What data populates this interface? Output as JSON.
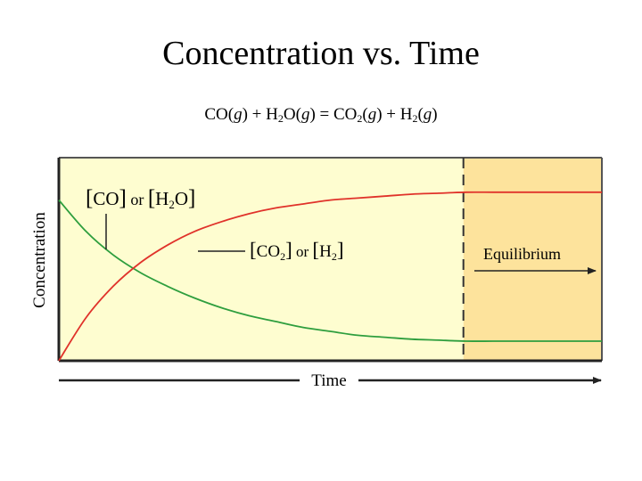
{
  "slide": {
    "title": "Concentration vs. Time",
    "equation": {
      "co": "CO(",
      "g1": "g",
      "p1": ") + H",
      "s1": "2",
      "p2": "O(",
      "g2": "g",
      "p3": ") = CO",
      "s2": "2",
      "p4": "(",
      "g3": "g",
      "p5": ") + H",
      "s3": "2",
      "p6": "(",
      "g4": "g",
      "p7": ")"
    }
  },
  "chart_data": {
    "type": "line",
    "title": "",
    "xlabel": "Time",
    "ylabel": "Concentration",
    "xlim": [
      0,
      1
    ],
    "ylim": [
      0,
      1
    ],
    "grid": false,
    "series": [
      {
        "name": "[CO] or [H2O]",
        "label": {
          "br1": "[",
          "t1": "CO",
          "br2": "]",
          "or": " or ",
          "br3": "[",
          "t2": "H",
          "sub": "2",
          "t3": "O",
          "br4": "]"
        },
        "color": "#2e9e3e",
        "x": [
          0,
          0.05,
          0.1,
          0.15,
          0.2,
          0.25,
          0.3,
          0.35,
          0.4,
          0.45,
          0.5,
          0.55,
          0.6,
          0.65,
          0.7,
          0.75,
          0.8,
          0.85,
          0.9,
          0.95,
          1.0
        ],
        "y": [
          0.82,
          0.66,
          0.54,
          0.45,
          0.38,
          0.32,
          0.27,
          0.23,
          0.2,
          0.17,
          0.15,
          0.13,
          0.12,
          0.11,
          0.105,
          0.1,
          0.1,
          0.1,
          0.1,
          0.1,
          0.1
        ]
      },
      {
        "name": "[CO2] or [H2]",
        "label": {
          "br1": "[",
          "t1": "CO",
          "sub": "2",
          "br2": "]",
          "or": " or ",
          "br3": "[",
          "t2": "H",
          "sub2": "2",
          "br4": "]"
        },
        "color": "#e0322a",
        "x": [
          0,
          0.05,
          0.1,
          0.15,
          0.2,
          0.25,
          0.3,
          0.35,
          0.4,
          0.45,
          0.5,
          0.55,
          0.6,
          0.65,
          0.7,
          0.75,
          0.8,
          0.85,
          0.9,
          0.95,
          1.0
        ],
        "y": [
          0,
          0.22,
          0.38,
          0.5,
          0.59,
          0.66,
          0.71,
          0.75,
          0.78,
          0.8,
          0.82,
          0.83,
          0.84,
          0.85,
          0.855,
          0.86,
          0.86,
          0.86,
          0.86,
          0.86,
          0.86
        ]
      }
    ],
    "equilibrium": {
      "x": 0.745,
      "label": "Equilibrium"
    },
    "colors": {
      "pre_equilibrium_bg": "#fefdd0",
      "equilibrium_bg": "#fde39c"
    }
  }
}
